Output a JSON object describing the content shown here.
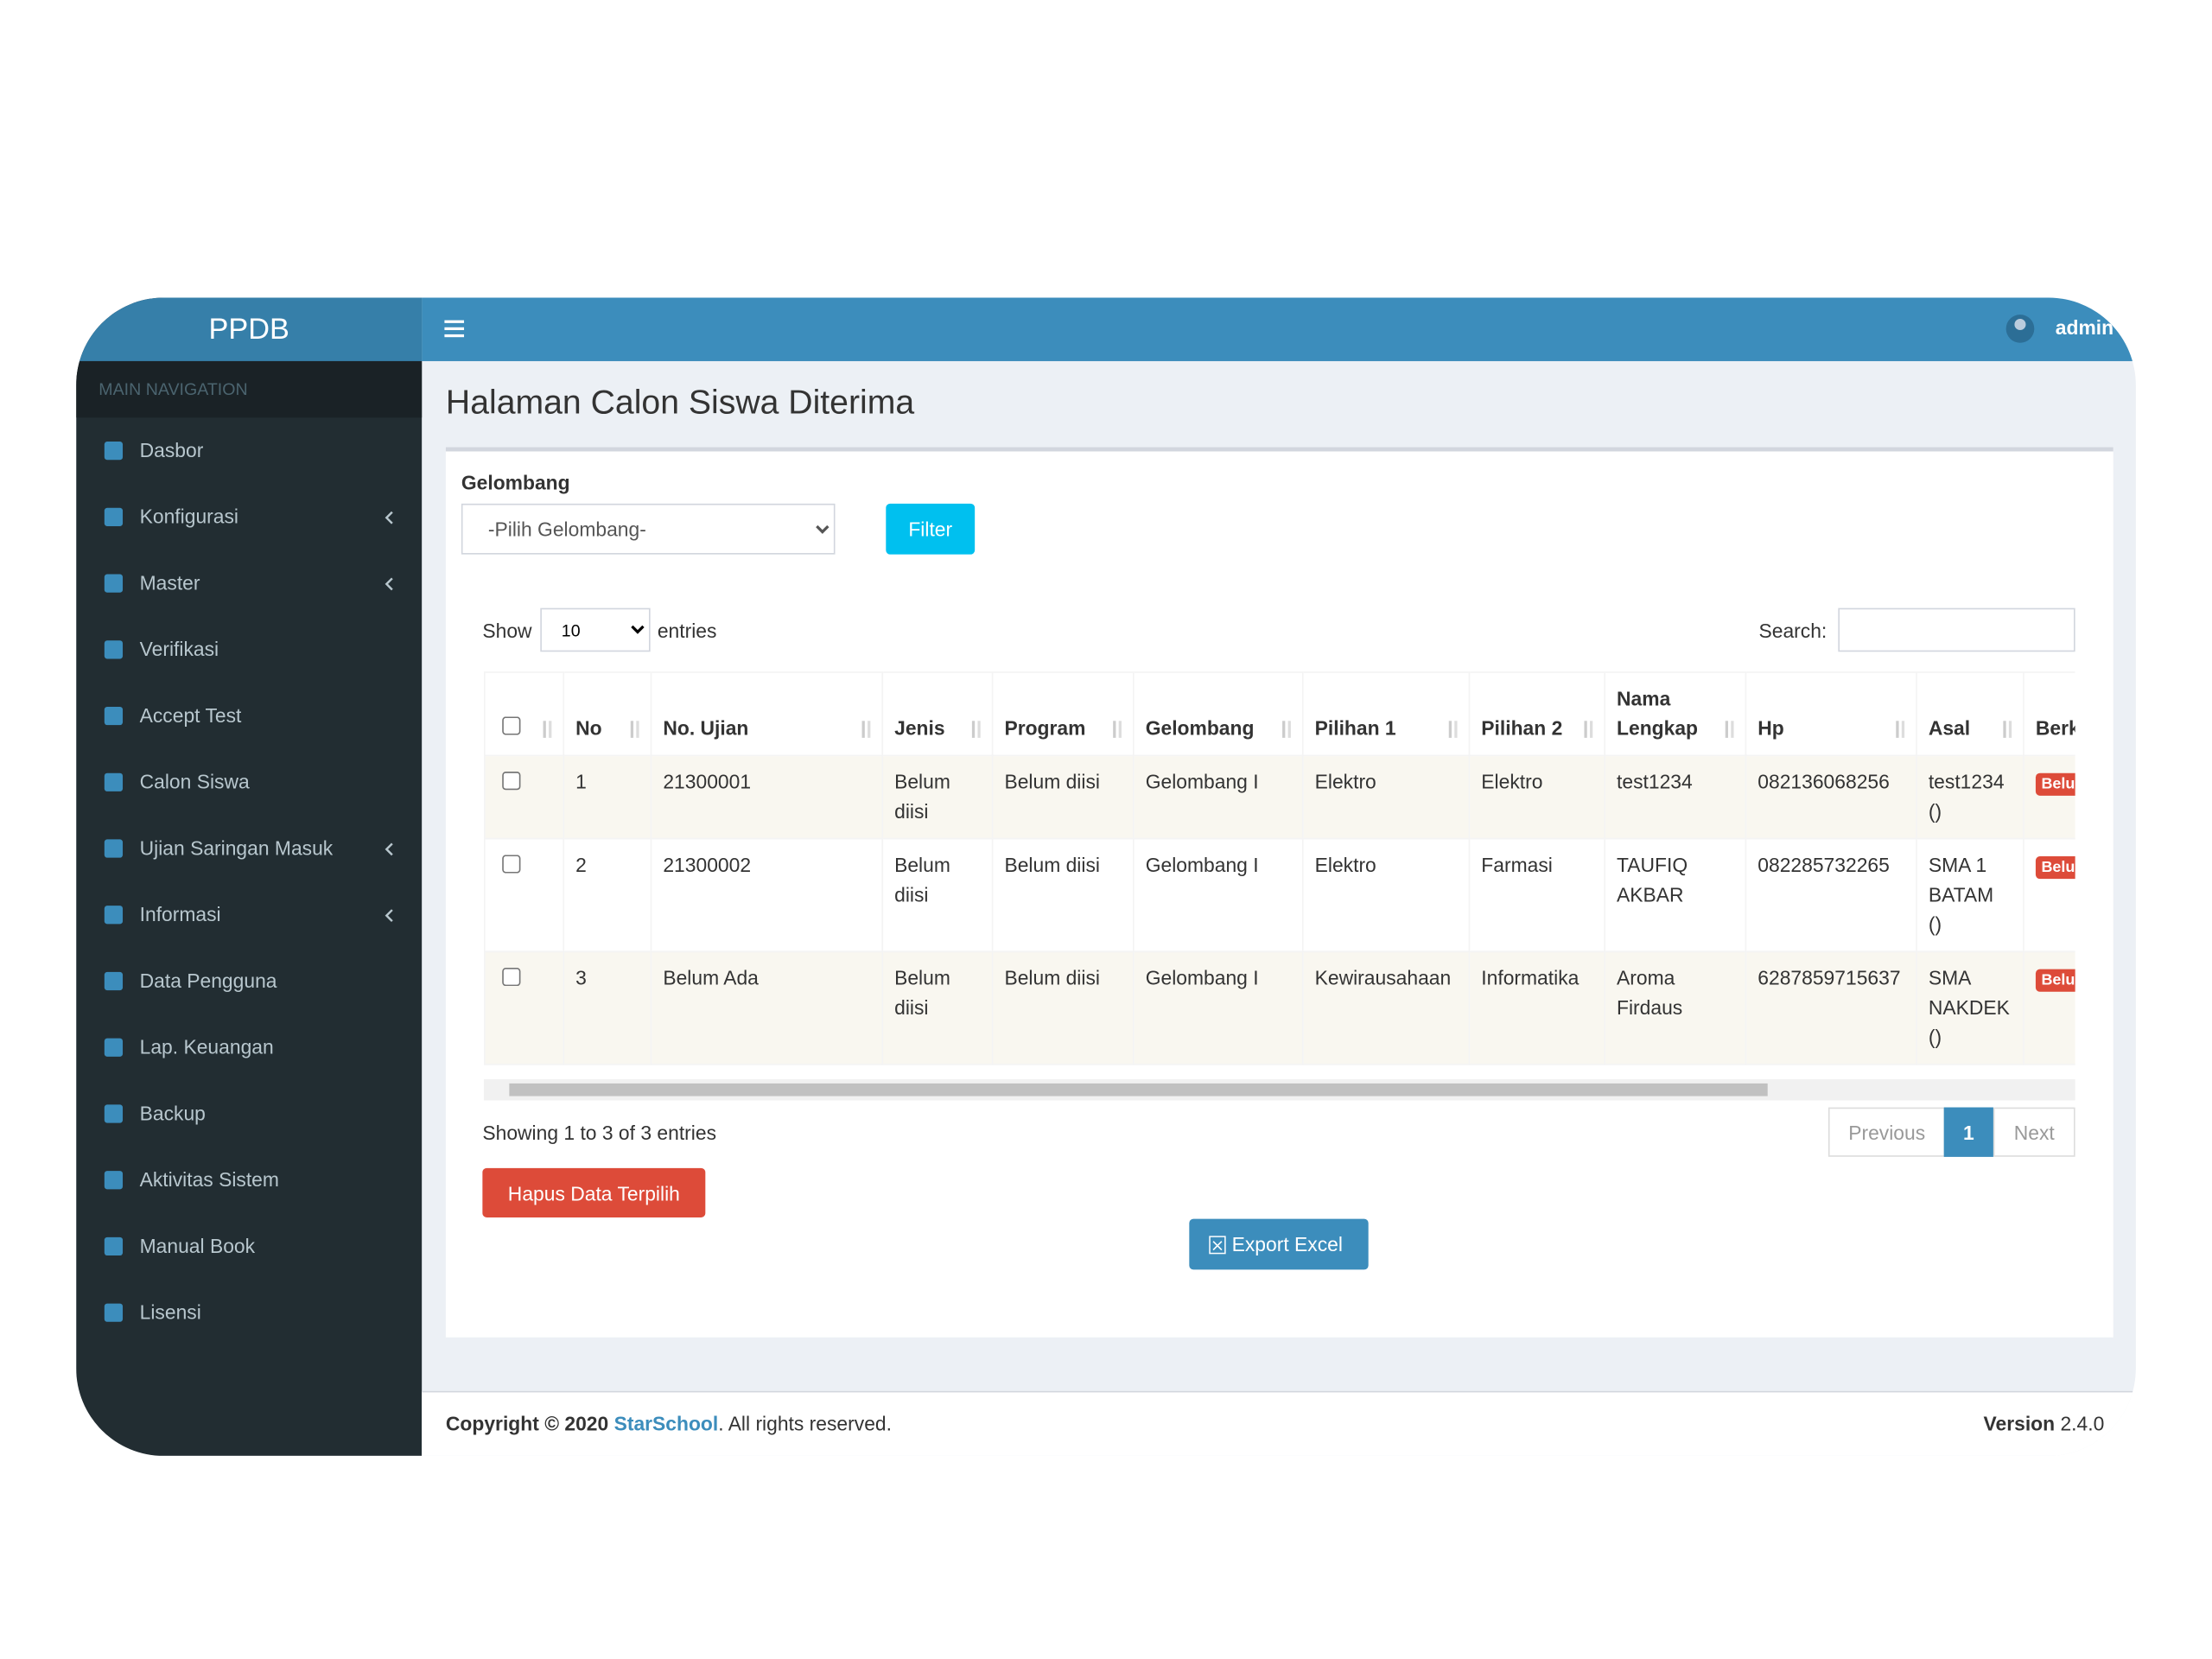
{
  "sidebar": {
    "brand": "PPDB",
    "nav_header": "MAIN NAVIGATION",
    "menu": [
      "Dasbor",
      "Konfigurasi",
      "Master",
      "Verifikasi",
      "Accept Test",
      "Calon Siswa",
      "Ujian Saringan Masuk",
      "Informasi",
      "Data Pengguna",
      "Lap. Keuangan",
      "Backup",
      "Aktivitas Sistem",
      "Manual Book",
      "Lisensi"
    ]
  },
  "topbar": {
    "user": "admin"
  },
  "page": {
    "title": "Halaman Calon Siswa Diterima"
  },
  "filter": {
    "label": "Gelombang",
    "select": "-Pilih Gelombang-",
    "button": "Filter"
  },
  "table_controls": {
    "show": "Show",
    "length": 10,
    "entries": "entries",
    "search": "Search:"
  },
  "table": {
    "headers": [
      "No",
      "No. Ujian",
      "Jenis",
      "Program",
      "Gelombang",
      "Pilihan 1",
      "Pilihan 2",
      "Nama Lengkap",
      "Hp",
      "Asal",
      "Berkas"
    ],
    "rows": [
      [
        1,
        "21300001",
        "Belum diisi",
        "Belum diisi",
        "Gelombang I",
        "Elektro",
        "Elektro",
        "test1234",
        "082136068256",
        "test1234 ()",
        "Belum"
      ],
      [
        2,
        "21300002",
        "Belum diisi",
        "Belum diisi",
        "Gelombang I",
        "Elektro",
        "Farmasi",
        "TAUFIQ AKBAR",
        "082285732265",
        "SMA 1 BATAM ()",
        "Belum"
      ],
      [
        3,
        "Belum Ada",
        "Belum diisi",
        "Belum diisi",
        "Gelombang I",
        "Kewirausahaan",
        "Informatika",
        "Aroma Firdaus",
        "6287859715637",
        "SMA NAKDEK ()",
        "Belum"
      ]
    ]
  },
  "info": "Showing 1 to 3 of 3 entries",
  "pagination": {
    "previous": "Previous",
    "current": "1",
    "next": "Next"
  },
  "actions": {
    "delete": "Hapus Data Terpilih",
    "export": "Export Excel"
  },
  "footer": {
    "copyright": "Copyright © 2020",
    "brand": "StarSchool",
    "rights": ". All rights reserved.",
    "version_label": "Version",
    "version": "2.4.0"
  }
}
